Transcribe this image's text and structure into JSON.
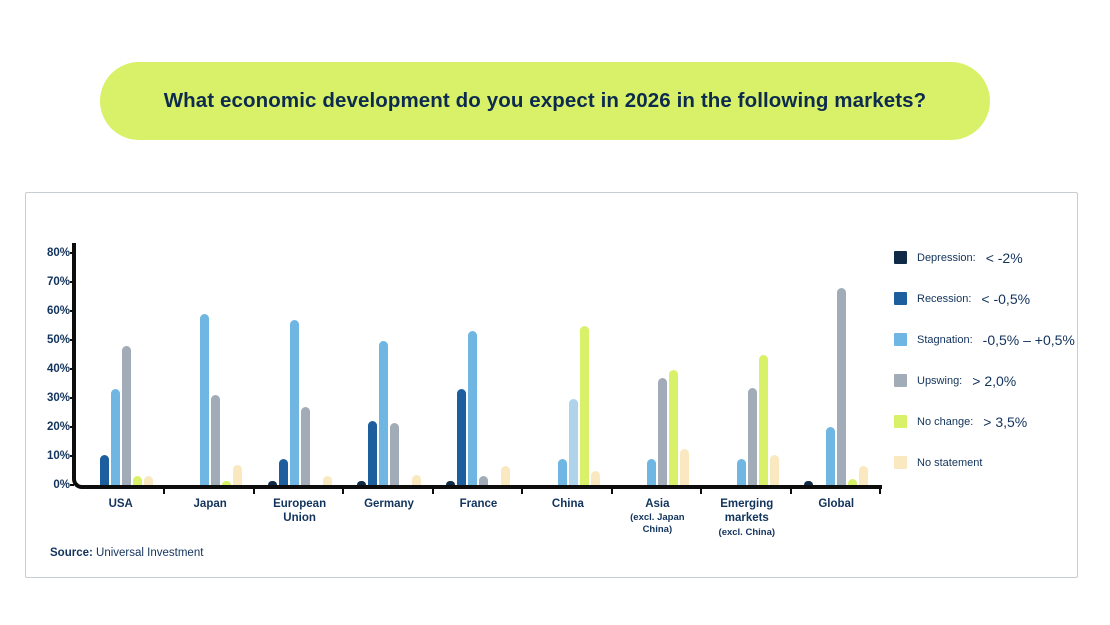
{
  "title": "What economic development do you expect in 2026 in the following markets?",
  "source": {
    "label": "Source:",
    "text": "Universal Investment"
  },
  "colors": {
    "banner": "#D9F168",
    "text_navy": "#12335C",
    "axis": "#0D0D0D",
    "card_border": "#C7CDD4"
  },
  "chart_data": {
    "type": "bar",
    "title": "",
    "xlabel": "",
    "ylabel": "",
    "ylim": [
      0,
      80
    ],
    "ytick_labels": [
      "0%",
      "10%",
      "20%",
      "30%",
      "40%",
      "50%",
      "60%",
      "70%",
      "80%"
    ],
    "grid": false,
    "legend_position": "right",
    "series": [
      {
        "id": "depression",
        "name": "Depression:",
        "range": "< -2%",
        "color": "#0E2A47"
      },
      {
        "id": "recession",
        "name": "Recession:",
        "range": "< -0,5%",
        "color": "#1D5F9E"
      },
      {
        "id": "stagnation",
        "name": "Stagnation:",
        "range": "-0,5% – +0,5%",
        "color": "#6FB6E3"
      },
      {
        "id": "upswing",
        "name": "Upswing:",
        "range": "> 2,0%",
        "color": "#A2ACB8"
      },
      {
        "id": "nochange",
        "name": "No change:",
        "range": "> 3,5%",
        "color": "#D9F168"
      },
      {
        "id": "nostatement",
        "name": "No statement",
        "range": "",
        "color": "#FAE9C0"
      }
    ],
    "groups": [
      {
        "label": "USA",
        "sublabel": "",
        "values": {
          "depression": 0,
          "recession": 10.5,
          "stagnation": 33,
          "upswing": 48,
          "nochange": 3,
          "nostatement": 3
        }
      },
      {
        "label": "Japan",
        "sublabel": "",
        "values": {
          "depression": 0,
          "recession": 0,
          "stagnation": 59,
          "upswing": 31,
          "nochange": 1.5,
          "nostatement": 7
        }
      },
      {
        "label": "European Union",
        "sublabel": "",
        "values": {
          "depression": 1.5,
          "recession": 9,
          "stagnation": 57,
          "upswing": 27,
          "nochange": 0,
          "nostatement": 3
        }
      },
      {
        "label": "Germany",
        "sublabel": "",
        "values": {
          "depression": 1.5,
          "recession": 22,
          "stagnation": 49.5,
          "upswing": 21.5,
          "nochange": 0,
          "nostatement": 3.5
        }
      },
      {
        "label": "France",
        "sublabel": "",
        "values": {
          "depression": 1.5,
          "recession": 33,
          "stagnation": 53,
          "upswing": 3,
          "nochange": 0,
          "nostatement": 6.5
        }
      },
      {
        "label": "China",
        "sublabel": "",
        "values": {
          "depression": 0,
          "recession": 0,
          "stagnation": 9,
          "upswing": 29.5,
          "nochange": 55,
          "nostatement": 5
        },
        "bar_color_overrides": {
          "upswing": "#AED3EA"
        }
      },
      {
        "label": "Asia",
        "sublabel": "(excl. Japan China)",
        "values": {
          "depression": 0,
          "recession": 0,
          "stagnation": 9,
          "upswing": 37,
          "nochange": 39.5,
          "nostatement": 12.5
        }
      },
      {
        "label": "Emerging markets",
        "sublabel": "(excl. China)",
        "values": {
          "depression": 0,
          "recession": 0,
          "stagnation": 9,
          "upswing": 33.5,
          "nochange": 45,
          "nostatement": 10.5
        }
      },
      {
        "label": "Global",
        "sublabel": "",
        "values": {
          "depression": 1.5,
          "recession": 0,
          "stagnation": 20,
          "upswing": 68,
          "nochange": 2,
          "nostatement": 6.5
        }
      }
    ]
  }
}
